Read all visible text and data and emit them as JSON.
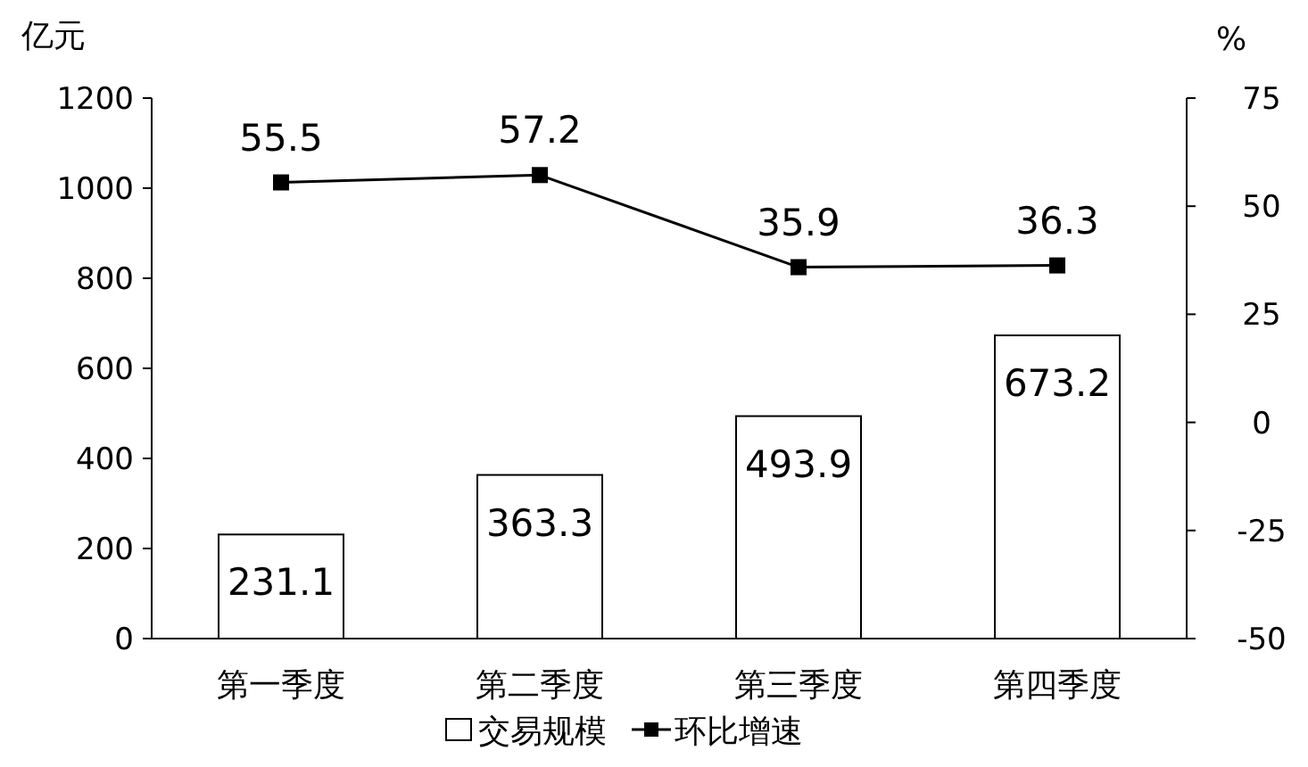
{
  "chart_data": {
    "type": "bar",
    "categories": [
      "第一季度",
      "第二季度",
      "第三季度",
      "第四季度"
    ],
    "ylabel": "亿元",
    "y2label": "%",
    "ylim": [
      0,
      1200
    ],
    "yticks": [
      0,
      200,
      400,
      600,
      800,
      1000,
      1200
    ],
    "y2lim": [
      -50,
      75
    ],
    "y2ticks": [
      -50,
      -25,
      0,
      25,
      50,
      75
    ],
    "series": [
      {
        "name": "交易规模",
        "color": "#ffffff",
        "values": [
          231.1,
          363.3,
          493.9,
          673.2
        ]
      },
      {
        "name": "环比增速",
        "type": "line",
        "axis": "y2",
        "color": "#000000",
        "values": [
          55.5,
          57.2,
          35.9,
          36.3
        ]
      }
    ],
    "marker": "square",
    "data_labels": true,
    "legend": "bottom",
    "grid": false
  }
}
